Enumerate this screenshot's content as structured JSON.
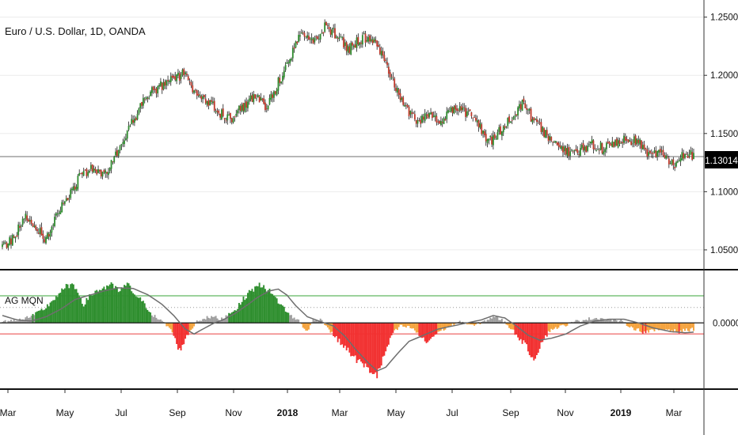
{
  "chart_title": "Euro / U.S. Dollar, 1D, OANDA",
  "indicator_label": "AG MQN",
  "current_price_label": "1.13014",
  "colors": {
    "bull": "#2e8b2e",
    "bear": "#c0392b",
    "hist_up": "#2f8f2f",
    "hist_down": "#f23030",
    "hist_neutral_up": "#9e9e9e",
    "hist_neutral_down": "#f4a23c",
    "signal_line": "#6e6e6e",
    "upper_band": "#7cc47c",
    "lower_band": "#f08080",
    "price_line": "#b7b7b7"
  },
  "chart_data": [
    {
      "type": "candlestick",
      "title": "Euro / U.S. Dollar, 1D, OANDA",
      "ylim": [
        1.035,
        1.262
      ],
      "y_ticks": [
        "1.25000",
        "1.20000",
        "1.15000",
        "1.10000",
        "1.05000"
      ],
      "x_ticks": [
        "Mar",
        "May",
        "Jul",
        "Sep",
        "Nov",
        "2018",
        "Mar",
        "May",
        "Jul",
        "Sep",
        "Nov",
        "2019",
        "Mar"
      ],
      "last_price": 1.13014,
      "close_path": [
        [
          0,
          1.053
        ],
        [
          8,
          1.061
        ],
        [
          16,
          1.079
        ],
        [
          22,
          1.072
        ],
        [
          30,
          1.058
        ],
        [
          38,
          1.083
        ],
        [
          46,
          1.097
        ],
        [
          54,
          1.114
        ],
        [
          62,
          1.121
        ],
        [
          70,
          1.115
        ],
        [
          78,
          1.131
        ],
        [
          86,
          1.151
        ],
        [
          94,
          1.171
        ],
        [
          102,
          1.185
        ],
        [
          110,
          1.191
        ],
        [
          118,
          1.196
        ],
        [
          126,
          1.203
        ],
        [
          134,
          1.182
        ],
        [
          142,
          1.178
        ],
        [
          150,
          1.167
        ],
        [
          158,
          1.163
        ],
        [
          166,
          1.174
        ],
        [
          174,
          1.181
        ],
        [
          182,
          1.172
        ],
        [
          190,
          1.194
        ],
        [
          198,
          1.214
        ],
        [
          206,
          1.238
        ],
        [
          214,
          1.227
        ],
        [
          222,
          1.242
        ],
        [
          230,
          1.235
        ],
        [
          238,
          1.222
        ],
        [
          246,
          1.231
        ],
        [
          254,
          1.234
        ],
        [
          262,
          1.215
        ],
        [
          270,
          1.191
        ],
        [
          278,
          1.171
        ],
        [
          286,
          1.161
        ],
        [
          294,
          1.168
        ],
        [
          302,
          1.161
        ],
        [
          310,
          1.172
        ],
        [
          318,
          1.169
        ],
        [
          326,
          1.163
        ],
        [
          334,
          1.141
        ],
        [
          342,
          1.151
        ],
        [
          350,
          1.162
        ],
        [
          358,
          1.176
        ],
        [
          366,
          1.161
        ],
        [
          374,
          1.149
        ],
        [
          382,
          1.143
        ],
        [
          390,
          1.133
        ],
        [
          398,
          1.135
        ],
        [
          406,
          1.141
        ],
        [
          414,
          1.137
        ],
        [
          422,
          1.142
        ],
        [
          430,
          1.146
        ],
        [
          438,
          1.142
        ],
        [
          446,
          1.132
        ],
        [
          454,
          1.134
        ],
        [
          462,
          1.122
        ],
        [
          470,
          1.134
        ],
        [
          476,
          1.13
        ]
      ]
    },
    {
      "type": "histogram",
      "title": "AG MQN",
      "y_ticks": [
        "0.0000"
      ],
      "ylim": [
        -1.05,
        0.8
      ],
      "upper_band": 0.44,
      "dotted_level": 0.25,
      "lower_band": -0.18,
      "values_path": [
        [
          0,
          0.02
        ],
        [
          10,
          0.05
        ],
        [
          20,
          0.1
        ],
        [
          30,
          0.25
        ],
        [
          38,
          0.45
        ],
        [
          46,
          0.62
        ],
        [
          52,
          0.52
        ],
        [
          56,
          0.3
        ],
        [
          62,
          0.48
        ],
        [
          68,
          0.55
        ],
        [
          74,
          0.62
        ],
        [
          80,
          0.52
        ],
        [
          86,
          0.62
        ],
        [
          92,
          0.45
        ],
        [
          98,
          0.3
        ],
        [
          104,
          0.12
        ],
        [
          110,
          0.02
        ],
        [
          116,
          -0.1
        ],
        [
          122,
          -0.45
        ],
        [
          128,
          -0.18
        ],
        [
          134,
          0.03
        ],
        [
          140,
          0.08
        ],
        [
          146,
          0.1
        ],
        [
          150,
          0.05
        ],
        [
          156,
          0.15
        ],
        [
          162,
          0.25
        ],
        [
          168,
          0.45
        ],
        [
          174,
          0.58
        ],
        [
          180,
          0.62
        ],
        [
          186,
          0.45
        ],
        [
          192,
          0.3
        ],
        [
          198,
          0.12
        ],
        [
          204,
          0.04
        ],
        [
          210,
          -0.15
        ],
        [
          214,
          0.05
        ],
        [
          220,
          0.05
        ],
        [
          228,
          -0.2
        ],
        [
          236,
          -0.4
        ],
        [
          244,
          -0.6
        ],
        [
          252,
          -0.75
        ],
        [
          258,
          -0.85
        ],
        [
          262,
          -0.6
        ],
        [
          268,
          -0.2
        ],
        [
          274,
          -0.05
        ],
        [
          282,
          -0.08
        ],
        [
          292,
          -0.32
        ],
        [
          300,
          -0.15
        ],
        [
          308,
          -0.05
        ],
        [
          316,
          0.02
        ],
        [
          324,
          -0.05
        ],
        [
          332,
          0.03
        ],
        [
          338,
          0.1
        ],
        [
          344,
          0.05
        ],
        [
          350,
          -0.08
        ],
        [
          356,
          -0.25
        ],
        [
          360,
          -0.35
        ],
        [
          366,
          -0.6
        ],
        [
          372,
          -0.28
        ],
        [
          378,
          -0.1
        ],
        [
          386,
          -0.05
        ],
        [
          394,
          0.02
        ],
        [
          402,
          0.06
        ],
        [
          410,
          0.08
        ],
        [
          418,
          0.05
        ],
        [
          426,
          0.03
        ],
        [
          434,
          -0.08
        ],
        [
          442,
          -0.15
        ],
        [
          450,
          -0.12
        ],
        [
          458,
          -0.1
        ],
        [
          466,
          -0.15
        ],
        [
          470,
          -0.12
        ],
        [
          476,
          -0.1
        ]
      ],
      "signal_path": [
        [
          0,
          0.12
        ],
        [
          10,
          0.05
        ],
        [
          20,
          0.03
        ],
        [
          30,
          0.1
        ],
        [
          40,
          0.22
        ],
        [
          50,
          0.38
        ],
        [
          60,
          0.45
        ],
        [
          70,
          0.52
        ],
        [
          80,
          0.57
        ],
        [
          90,
          0.56
        ],
        [
          100,
          0.46
        ],
        [
          110,
          0.3
        ],
        [
          118,
          0.12
        ],
        [
          126,
          -0.1
        ],
        [
          132,
          -0.18
        ],
        [
          138,
          -0.1
        ],
        [
          146,
          0.0
        ],
        [
          152,
          0.05
        ],
        [
          160,
          0.15
        ],
        [
          168,
          0.28
        ],
        [
          176,
          0.42
        ],
        [
          184,
          0.52
        ],
        [
          190,
          0.55
        ],
        [
          196,
          0.45
        ],
        [
          202,
          0.28
        ],
        [
          210,
          0.1
        ],
        [
          218,
          0.03
        ],
        [
          228,
          -0.05
        ],
        [
          236,
          -0.22
        ],
        [
          244,
          -0.45
        ],
        [
          252,
          -0.65
        ],
        [
          258,
          -0.78
        ],
        [
          264,
          -0.72
        ],
        [
          272,
          -0.5
        ],
        [
          280,
          -0.3
        ],
        [
          290,
          -0.2
        ],
        [
          300,
          -0.1
        ],
        [
          310,
          -0.05
        ],
        [
          320,
          0.0
        ],
        [
          330,
          0.05
        ],
        [
          338,
          0.12
        ],
        [
          346,
          0.08
        ],
        [
          354,
          -0.05
        ],
        [
          362,
          -0.2
        ],
        [
          370,
          -0.28
        ],
        [
          378,
          -0.25
        ],
        [
          388,
          -0.18
        ],
        [
          398,
          -0.05
        ],
        [
          408,
          0.03
        ],
        [
          418,
          0.06
        ],
        [
          428,
          0.06
        ],
        [
          438,
          0.0
        ],
        [
          448,
          -0.08
        ],
        [
          460,
          -0.14
        ],
        [
          470,
          -0.16
        ],
        [
          476,
          -0.15
        ]
      ]
    }
  ]
}
